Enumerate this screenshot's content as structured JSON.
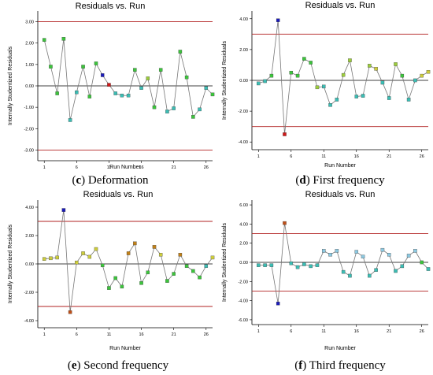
{
  "chart_data": [
    {
      "type": "line",
      "title": "Residuals vs. Run",
      "xlabel": "Run Number",
      "ylabel": "Internally Studentized Residuals",
      "caption_letter": "(c)",
      "caption_text": "Deformation",
      "xlim": [
        0,
        27
      ],
      "ylim": [
        -3.5,
        3.5
      ],
      "xticks": [
        1,
        6,
        11,
        16,
        21,
        26
      ],
      "xtick_labels": [
        "1",
        "6",
        "11",
        "16",
        "21",
        "26"
      ],
      "yticks": [
        -3,
        -2,
        -1,
        0,
        1,
        2,
        3
      ],
      "ytick_labels": [
        "-3.00",
        "-2.00",
        "-1.00",
        "0.00",
        "1.00",
        "2.00",
        "3.00"
      ],
      "limits": [
        3,
        -3
      ],
      "x": [
        1,
        2,
        3,
        4,
        5,
        6,
        7,
        8,
        9,
        10,
        11,
        12,
        13,
        14,
        15,
        16,
        17,
        18,
        19,
        20,
        21,
        22,
        23,
        24,
        25,
        26,
        27
      ],
      "values": [
        2.15,
        0.9,
        -0.35,
        2.2,
        -1.6,
        -0.3,
        0.9,
        -0.5,
        1.05,
        0.5,
        0.05,
        -0.35,
        -0.45,
        -0.45,
        0.75,
        -0.1,
        0.35,
        -1.0,
        0.75,
        -1.2,
        -1.05,
        1.6,
        0.4,
        -1.45,
        -1.1,
        -0.1,
        -0.4
      ],
      "point_colors": [
        "#3cc43c",
        "#3cc43c",
        "#3cc43c",
        "#3cc43c",
        "#3cbdb4",
        "#3cbdb4",
        "#3cc43c",
        "#3cc43c",
        "#3cc43c",
        "#1c1cb8",
        "#d01818",
        "#3cbdb4",
        "#3cbdb4",
        "#3cbdb4",
        "#3cc43c",
        "#3cbdb4",
        "#9ccc3c",
        "#3cc43c",
        "#3cc43c",
        "#3cbdb4",
        "#3cbdb4",
        "#3cc43c",
        "#3cc43c",
        "#3cc43c",
        "#3cbdb4",
        "#3cbdb4",
        "#3cc43c"
      ]
    },
    {
      "type": "line",
      "title": "Residuals vs. Run",
      "xlabel": "Run Number",
      "ylabel": "Internally Studentized Residuals",
      "caption_letter": "(d)",
      "caption_text": "First frequency",
      "xlim": [
        0,
        27
      ],
      "ylim": [
        -4.5,
        4.5
      ],
      "xticks": [
        1,
        6,
        11,
        16,
        21,
        26
      ],
      "xtick_labels": [
        "1",
        "6",
        "11",
        "16",
        "21",
        "26"
      ],
      "yticks": [
        -4,
        -2,
        0,
        2,
        4
      ],
      "ytick_labels": [
        "-4.00",
        "-2.00",
        "0.00",
        "2.00",
        "4.00"
      ],
      "limits": [
        3,
        -3
      ],
      "x": [
        1,
        2,
        3,
        4,
        5,
        6,
        7,
        8,
        9,
        10,
        11,
        12,
        13,
        14,
        15,
        16,
        17,
        18,
        19,
        20,
        21,
        22,
        23,
        24,
        25,
        26,
        27
      ],
      "values": [
        -0.2,
        -0.05,
        0.3,
        3.9,
        -3.5,
        0.5,
        0.3,
        1.4,
        1.15,
        -0.45,
        -0.4,
        -1.6,
        -1.25,
        0.35,
        1.3,
        -1.05,
        -1.0,
        0.95,
        0.75,
        -0.15,
        -1.15,
        1.05,
        0.3,
        -1.25,
        0.0,
        0.3,
        0.55
      ],
      "point_colors": [
        "#3cbdb4",
        "#3cbdb4",
        "#3cc43c",
        "#1c1cb8",
        "#d01818",
        "#3cc43c",
        "#3cc43c",
        "#3cc43c",
        "#3cc43c",
        "#9ccc3c",
        "#3cbdb4",
        "#3cbdb4",
        "#3cbdb4",
        "#9ccc3c",
        "#9ccc3c",
        "#3cbdb4",
        "#3cbdb4",
        "#9ccc3c",
        "#cccc3c",
        "#3cbdb4",
        "#3cbdb4",
        "#9ccc3c",
        "#3cc43c",
        "#3cbdb4",
        "#3cbdb4",
        "#cccc3c",
        "#cccc3c"
      ]
    },
    {
      "type": "line",
      "title": "Residuals vs. Run",
      "xlabel": "Run Number",
      "ylabel": "Internally Studentized Residuals",
      "caption_letter": "(e)",
      "caption_text": "Second frequency",
      "xlim": [
        0,
        27
      ],
      "ylim": [
        -4.5,
        4.5
      ],
      "xticks": [
        1,
        6,
        11,
        16,
        21,
        26
      ],
      "xtick_labels": [
        "1",
        "6",
        "11",
        "16",
        "21",
        "26"
      ],
      "yticks": [
        -4,
        -2,
        0,
        2,
        4
      ],
      "ytick_labels": [
        "-4.00",
        "-2.00",
        "0.00",
        "2.00",
        "4.00"
      ],
      "limits": [
        3,
        -3
      ],
      "x": [
        1,
        2,
        3,
        4,
        5,
        6,
        7,
        8,
        9,
        10,
        11,
        12,
        13,
        14,
        15,
        16,
        17,
        18,
        19,
        20,
        21,
        22,
        23,
        24,
        25,
        26,
        27
      ],
      "values": [
        0.35,
        0.4,
        0.45,
        3.8,
        -3.4,
        0.1,
        0.75,
        0.5,
        1.05,
        -0.1,
        -1.7,
        -1.0,
        -1.6,
        0.75,
        1.45,
        -1.35,
        -0.6,
        1.2,
        0.65,
        -1.2,
        -0.7,
        0.65,
        -0.15,
        -0.5,
        -0.95,
        -0.15,
        0.45
      ],
      "point_colors": [
        "#cccc3c",
        "#cccc3c",
        "#cccc3c",
        "#1c1cb8",
        "#c05018",
        "#cccc3c",
        "#cccc3c",
        "#cccc3c",
        "#cccc3c",
        "#3cc43c",
        "#3cc43c",
        "#3cc43c",
        "#3cc43c",
        "#c08018",
        "#c08018",
        "#3cc43c",
        "#3cc43c",
        "#c08018",
        "#cccc3c",
        "#3cc43c",
        "#3cc43c",
        "#c08018",
        "#3cc43c",
        "#3cc43c",
        "#3cc43c",
        "#3cbdb4",
        "#cccc3c"
      ]
    },
    {
      "type": "line",
      "title": "Residuals vs. Run",
      "xlabel": "Run Number",
      "ylabel": "Internally Studentized Residuals",
      "caption_letter": "(f)",
      "caption_text": "Third frequency",
      "xlim": [
        0,
        27
      ],
      "ylim": [
        -6.5,
        6.5
      ],
      "xticks": [
        1,
        6,
        11,
        16,
        21,
        26
      ],
      "xtick_labels": [
        "1",
        "6",
        "11",
        "16",
        "21",
        "26"
      ],
      "yticks": [
        -6,
        -4,
        -2,
        0,
        2,
        4,
        6
      ],
      "ytick_labels": [
        "-6.00",
        "-4.00",
        "-2.00",
        "0.00",
        "2.00",
        "4.00",
        "6.00"
      ],
      "limits": [
        3,
        -3
      ],
      "x": [
        1,
        2,
        3,
        4,
        5,
        6,
        7,
        8,
        9,
        10,
        11,
        12,
        13,
        14,
        15,
        16,
        17,
        18,
        19,
        20,
        21,
        22,
        23,
        24,
        25,
        26,
        27
      ],
      "values": [
        -0.3,
        -0.3,
        -0.3,
        -4.3,
        4.1,
        -0.1,
        -0.5,
        -0.2,
        -0.4,
        -0.3,
        1.2,
        0.8,
        1.2,
        -1.0,
        -1.4,
        1.1,
        0.6,
        -1.4,
        -0.8,
        1.3,
        0.8,
        -0.9,
        -0.4,
        0.7,
        1.2,
        0.0,
        -0.7
      ],
      "point_colors": [
        "#3cbdb4",
        "#3cbdb4",
        "#3cbdb4",
        "#1c1cb8",
        "#c05018",
        "#3cbdb4",
        "#3cbdb4",
        "#3cbdb4",
        "#3cbdb4",
        "#3cbdb4",
        "#8cc8e0",
        "#8cc8e0",
        "#8cc8e0",
        "#3cbdb4",
        "#3cbdb4",
        "#8cc8e0",
        "#8cc8e0",
        "#3cbdb4",
        "#3cbdb4",
        "#8cc8e0",
        "#8cc8e0",
        "#3cbdb4",
        "#3cbdb4",
        "#8cc8e0",
        "#8cc8e0",
        "#3cc43c",
        "#3cbdb4"
      ]
    }
  ],
  "colors": {
    "limit_line": "#b22222",
    "zero_line": "#000000",
    "series_line": "#777777",
    "axis": "#000000"
  }
}
